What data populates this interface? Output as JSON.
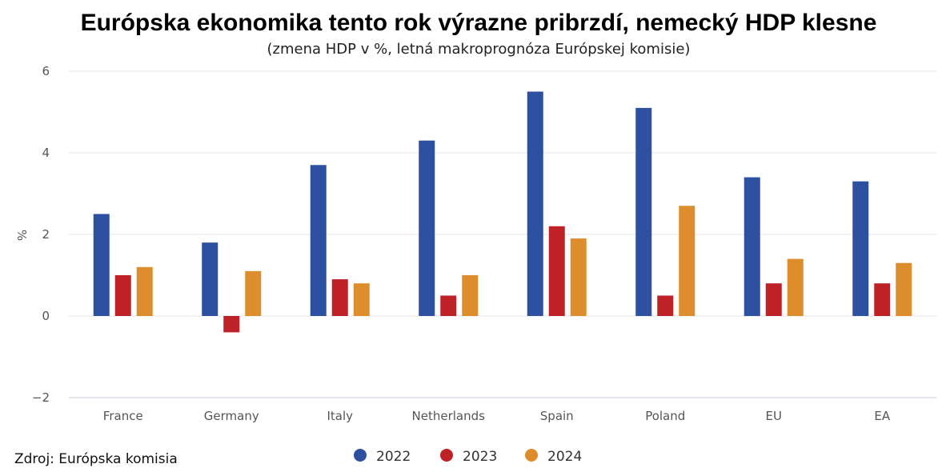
{
  "chart_data": {
    "type": "bar",
    "title": "Európska ekonomika tento rok výrazne pribrzdí, nemecký HDP klesne",
    "subtitle": "(zmena HDP v %, letná makroprognóza Európskej komisie)",
    "ylabel": "%",
    "xlabel": "",
    "ylim": [
      -2,
      6
    ],
    "yticks": [
      -2,
      0,
      2,
      4,
      6
    ],
    "ytick_labels": [
      "−2",
      "0",
      "2",
      "4",
      "6"
    ],
    "grid": true,
    "legend_position": "bottom-center",
    "categories": [
      "France",
      "Germany",
      "Italy",
      "Netherlands",
      "Spain",
      "Poland",
      "EU",
      "EA"
    ],
    "series": [
      {
        "name": "2022",
        "color": "#2e50a0",
        "values": [
          2.5,
          1.8,
          3.7,
          4.3,
          5.5,
          5.1,
          3.4,
          3.3
        ]
      },
      {
        "name": "2023",
        "color": "#be2126",
        "values": [
          1.0,
          -0.4,
          0.9,
          0.5,
          2.2,
          0.5,
          0.8,
          0.8
        ]
      },
      {
        "name": "2024",
        "color": "#de8d2c",
        "values": [
          1.2,
          1.1,
          0.8,
          1.0,
          1.9,
          2.7,
          1.4,
          1.3
        ]
      }
    ],
    "source": "Zdroj: Európska komisia"
  }
}
